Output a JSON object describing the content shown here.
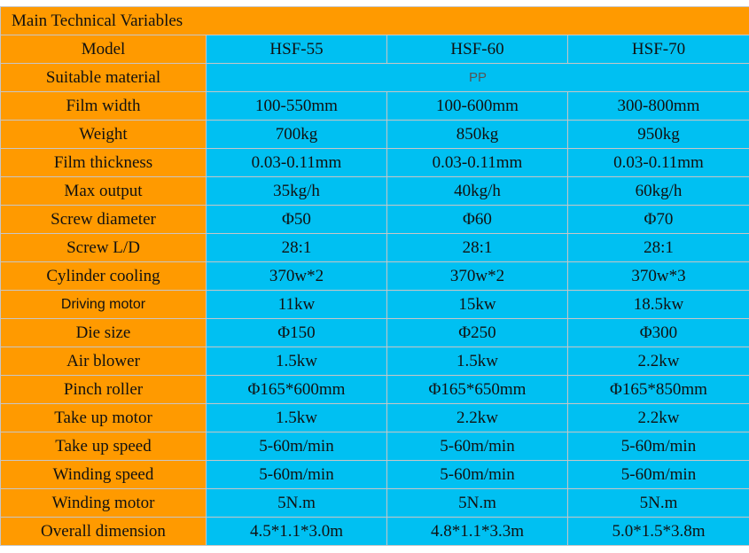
{
  "table": {
    "title": "Main Technical Variables",
    "model_label": "Model",
    "models": [
      "HSF-55",
      "HSF-60",
      "HSF-70"
    ],
    "material_label": "Suitable material",
    "material_value": "PP",
    "rows": [
      {
        "label": "Film width",
        "values": [
          "100-550mm",
          "100-600mm",
          "300-800mm"
        ]
      },
      {
        "label": "Weight",
        "values": [
          "700kg",
          "850kg",
          "950kg"
        ]
      },
      {
        "label": "Film thickness",
        "values": [
          "0.03-0.11mm",
          "0.03-0.11mm",
          "0.03-0.11mm"
        ]
      },
      {
        "label": "Max output",
        "values": [
          "35kg/h",
          "40kg/h",
          "60kg/h"
        ]
      },
      {
        "label": "Screw diameter",
        "values": [
          "Φ50",
          "Φ60",
          "Φ70"
        ]
      },
      {
        "label": "Screw L/D",
        "values": [
          "28:1",
          "28:1",
          "28:1"
        ]
      },
      {
        "label": "Cylinder cooling",
        "values": [
          "370w*2",
          "370w*2",
          "370w*3"
        ]
      },
      {
        "label": "Driving motor",
        "values": [
          "11kw",
          "15kw",
          "18.5kw"
        ]
      },
      {
        "label": "Die size",
        "values": [
          "Φ150",
          "Φ250",
          "Φ300"
        ]
      },
      {
        "label": "Air blower",
        "values": [
          "1.5kw",
          "1.5kw",
          "2.2kw"
        ]
      },
      {
        "label": "Pinch roller",
        "values": [
          "Φ165*600mm",
          "Φ165*650mm",
          "Φ165*850mm"
        ]
      },
      {
        "label": "Take up motor",
        "values": [
          "1.5kw",
          "2.2kw",
          "2.2kw"
        ]
      },
      {
        "label": "Take up speed",
        "values": [
          "5-60m/min",
          "5-60m/min",
          "5-60m/min"
        ]
      },
      {
        "label": "Winding speed",
        "values": [
          "5-60m/min",
          "5-60m/min",
          "5-60m/min"
        ]
      },
      {
        "label": "Winding motor",
        "values": [
          "5N.m",
          "5N.m",
          "5N.m"
        ]
      },
      {
        "label": "Overall dimension",
        "values": [
          "4.5*1.1*3.0m",
          "4.8*1.1*3.3m",
          "5.0*1.5*3.8m"
        ]
      }
    ]
  }
}
